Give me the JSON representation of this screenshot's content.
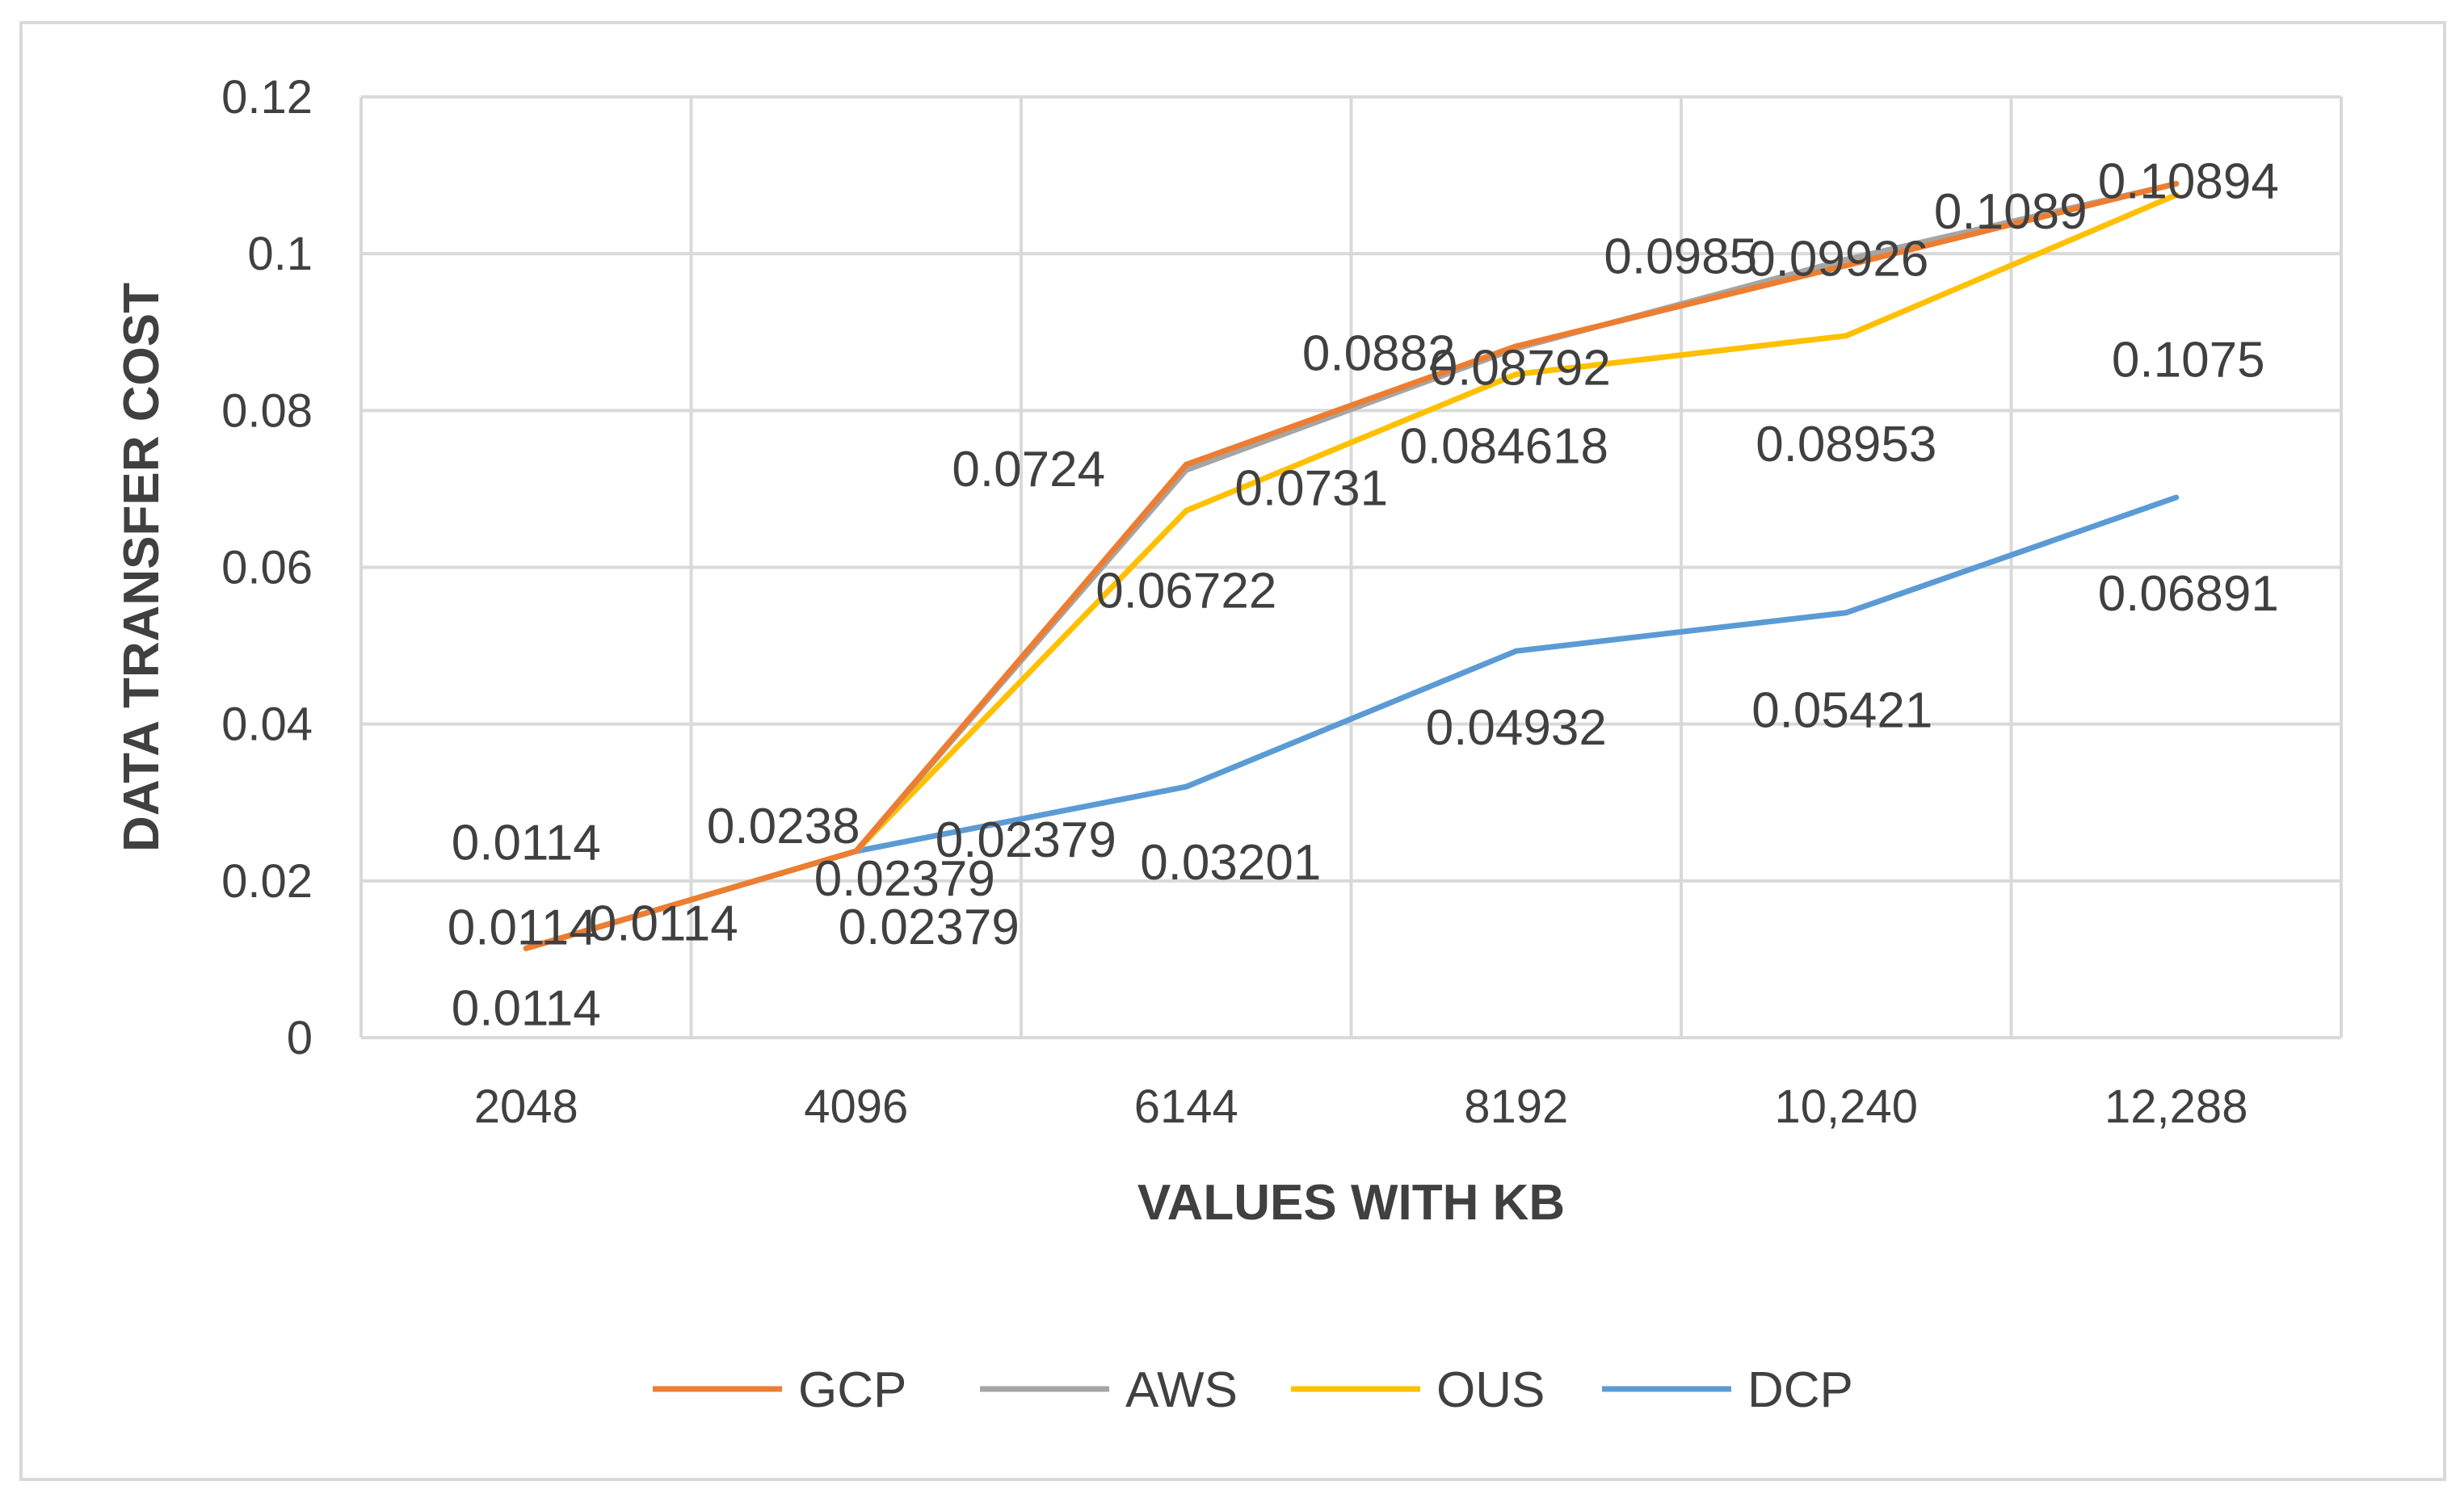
{
  "chart_data": {
    "type": "line",
    "title": "",
    "xlabel": "VALUES WITH KB",
    "ylabel": "DATA TRANSFER COST",
    "categories": [
      "2048",
      "4096",
      "6144",
      "8192",
      "10,240",
      "12,288"
    ],
    "ylim": [
      0,
      0.12
    ],
    "yticks": [
      0,
      0.02,
      0.04,
      0.06,
      0.08,
      0.1,
      0.12
    ],
    "ytick_labels": [
      "0",
      "0.02",
      "0.04",
      "0.06",
      "0.08",
      "0.1",
      "0.12"
    ],
    "grid": true,
    "legend_position": "bottom",
    "series": [
      {
        "name": "GCP",
        "color": "#ed7d31",
        "values": [
          0.0114,
          0.0238,
          0.0731,
          0.0882,
          0.0985,
          0.10894
        ]
      },
      {
        "name": "AWS",
        "color": "#a5a5a5",
        "values": [
          0.0114,
          0.02379,
          0.0724,
          0.08792,
          0.09926,
          0.1089
        ]
      },
      {
        "name": "OUS",
        "color": "#ffc000",
        "values": [
          0.0114,
          0.02379,
          0.06722,
          0.084618,
          0.08953,
          0.1075
        ]
      },
      {
        "name": "DCP",
        "color": "#5b9bd5",
        "values": [
          0.0114,
          0.02379,
          0.03201,
          0.04932,
          0.05421,
          0.06891
        ]
      }
    ],
    "data_labels": [
      {
        "text": "0.0114",
        "series": "GCP",
        "index": 0
      },
      {
        "text": "0.0114",
        "series": "AWS",
        "index": 0
      },
      {
        "text": "0.0114",
        "series": "OUS",
        "index": 0
      },
      {
        "text": "0.0114",
        "series": "DCP",
        "index": 0
      },
      {
        "text": "0.0238",
        "series": "GCP",
        "index": 1
      },
      {
        "text": "0.02379",
        "series": "AWS",
        "index": 1
      },
      {
        "text": "0.02379",
        "series": "OUS",
        "index": 1
      },
      {
        "text": "0.02379",
        "series": "DCP",
        "index": 1
      },
      {
        "text": "0.0724",
        "series": "AWS",
        "index": 2
      },
      {
        "text": "0.0731",
        "series": "GCP",
        "index": 2
      },
      {
        "text": "0.06722",
        "series": "OUS",
        "index": 2
      },
      {
        "text": "0.03201",
        "series": "DCP",
        "index": 2
      },
      {
        "text": "0.0882",
        "series": "GCP",
        "index": 3
      },
      {
        "text": "0.08792",
        "series": "AWS",
        "index": 3
      },
      {
        "text": "0.084618",
        "series": "OUS",
        "index": 3
      },
      {
        "text": "0.04932",
        "series": "DCP",
        "index": 3
      },
      {
        "text": "0.0985",
        "series": "GCP",
        "index": 4
      },
      {
        "text": "0.09926",
        "series": "AWS",
        "index": 4
      },
      {
        "text": "0.08953",
        "series": "OUS",
        "index": 4
      },
      {
        "text": "0.05421",
        "series": "DCP",
        "index": 4
      },
      {
        "text": "0.1089",
        "series": "AWS",
        "index": 5
      },
      {
        "text": "0.10894",
        "series": "GCP",
        "index": 5
      },
      {
        "text": "0.1075",
        "series": "OUS",
        "index": 5
      },
      {
        "text": "0.06891",
        "series": "DCP",
        "index": 5
      }
    ]
  }
}
